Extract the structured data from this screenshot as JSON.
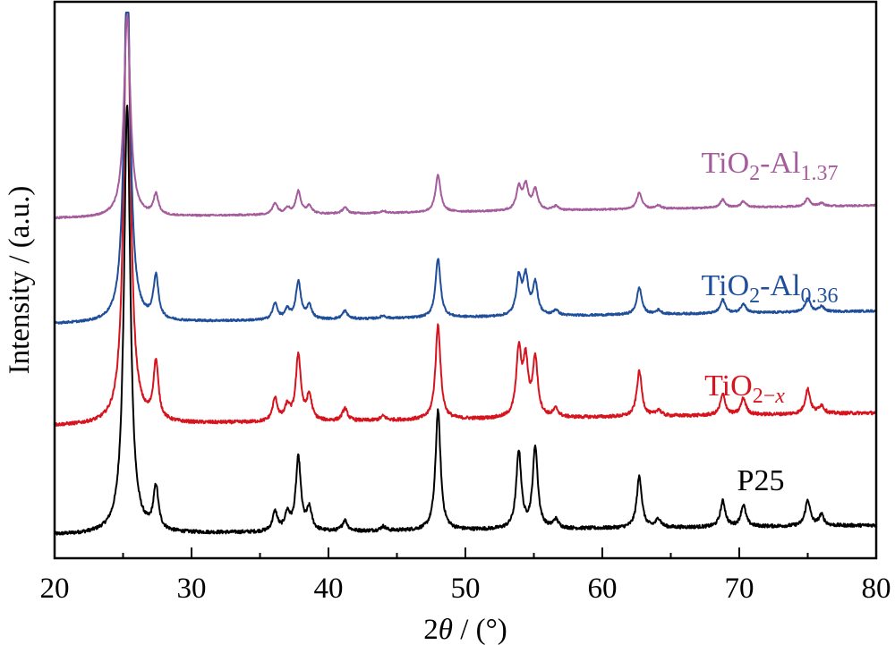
{
  "chart_data": {
    "type": "line",
    "title": "",
    "xlabel": "2θ / (°)",
    "xlabel_parts": {
      "prefix": "2",
      "symbol": "θ",
      "suffix": " / (°)"
    },
    "ylabel": "Intensity / (a.u.)",
    "xlim": [
      20,
      80
    ],
    "x_ticks": [
      20,
      30,
      40,
      50,
      60,
      70,
      80
    ],
    "x_minor_ticks": [
      25,
      35,
      45,
      55,
      65,
      75
    ],
    "y_ticks_shown": false,
    "grid": false,
    "legend": "inline labels at right above each trace",
    "series": [
      {
        "name": "P25",
        "label_parts": {
          "base": "P25",
          "sub1": "",
          "mid": "",
          "sub2": ""
        },
        "color": "#000000",
        "offset": 0,
        "baseline_slope": -0.3,
        "peaks": [
          {
            "x": 25.3,
            "h": 100
          },
          {
            "x": 27.4,
            "h": 10
          },
          {
            "x": 36.1,
            "h": 4.5
          },
          {
            "x": 37.0,
            "h": 4.0
          },
          {
            "x": 37.8,
            "h": 17
          },
          {
            "x": 38.6,
            "h": 5
          },
          {
            "x": 41.2,
            "h": 2.5
          },
          {
            "x": 44.0,
            "h": 1
          },
          {
            "x": 48.0,
            "h": 28
          },
          {
            "x": 53.9,
            "h": 18
          },
          {
            "x": 55.1,
            "h": 19
          },
          {
            "x": 56.6,
            "h": 2
          },
          {
            "x": 62.7,
            "h": 12
          },
          {
            "x": 64.1,
            "h": 2
          },
          {
            "x": 68.8,
            "h": 6
          },
          {
            "x": 70.3,
            "h": 5
          },
          {
            "x": 75.0,
            "h": 6
          },
          {
            "x": 76.0,
            "h": 2.5
          }
        ]
      },
      {
        "name": "TiO2-x",
        "label_parts": {
          "base": "TiO",
          "sub1": "2−x",
          "mid": "",
          "sub2": ""
        },
        "color": "#d7141e",
        "offset": 1,
        "baseline_slope": -0.4,
        "peaks": [
          {
            "x": 25.3,
            "h": 112
          },
          {
            "x": 27.4,
            "h": 14
          },
          {
            "x": 36.1,
            "h": 5.5
          },
          {
            "x": 37.0,
            "h": 3.5
          },
          {
            "x": 37.8,
            "h": 16
          },
          {
            "x": 38.6,
            "h": 6
          },
          {
            "x": 41.2,
            "h": 3
          },
          {
            "x": 44.0,
            "h": 1
          },
          {
            "x": 48.0,
            "h": 23
          },
          {
            "x": 53.9,
            "h": 16
          },
          {
            "x": 54.4,
            "h": 13
          },
          {
            "x": 55.1,
            "h": 14
          },
          {
            "x": 56.6,
            "h": 2
          },
          {
            "x": 62.7,
            "h": 11
          },
          {
            "x": 64.1,
            "h": 1.5
          },
          {
            "x": 68.8,
            "h": 5
          },
          {
            "x": 70.3,
            "h": 4
          },
          {
            "x": 75.0,
            "h": 6
          },
          {
            "x": 76.0,
            "h": 2
          }
        ]
      },
      {
        "name": "TiO2-Al0.36",
        "label_parts": {
          "base": "TiO",
          "sub1": "2",
          "mid": "-Al",
          "sub2": "0.36"
        },
        "color": "#1f4e9a",
        "offset": 2,
        "baseline_slope": -0.4,
        "peaks": [
          {
            "x": 25.3,
            "h": 130
          },
          {
            "x": 27.4,
            "h": 16
          },
          {
            "x": 36.1,
            "h": 6
          },
          {
            "x": 37.0,
            "h": 3.5
          },
          {
            "x": 37.8,
            "h": 14
          },
          {
            "x": 38.6,
            "h": 5
          },
          {
            "x": 41.2,
            "h": 3
          },
          {
            "x": 44.0,
            "h": 1
          },
          {
            "x": 48.0,
            "h": 22
          },
          {
            "x": 53.9,
            "h": 14
          },
          {
            "x": 54.4,
            "h": 14
          },
          {
            "x": 55.1,
            "h": 12
          },
          {
            "x": 56.6,
            "h": 2
          },
          {
            "x": 62.7,
            "h": 10
          },
          {
            "x": 64.1,
            "h": 1.5
          },
          {
            "x": 68.8,
            "h": 5
          },
          {
            "x": 70.3,
            "h": 3.5
          },
          {
            "x": 75.0,
            "h": 5
          },
          {
            "x": 76.0,
            "h": 2
          }
        ]
      },
      {
        "name": "TiO2-Al1.37",
        "label_parts": {
          "base": "TiO",
          "sub1": "2",
          "mid": "-Al",
          "sub2": "1.37"
        },
        "color": "#a55c9c",
        "offset": 3,
        "baseline_slope": -0.4,
        "peaks": [
          {
            "x": 25.3,
            "h": 98
          },
          {
            "x": 27.4,
            "h": 10
          },
          {
            "x": 36.1,
            "h": 5.5
          },
          {
            "x": 37.0,
            "h": 3
          },
          {
            "x": 37.8,
            "h": 11
          },
          {
            "x": 38.6,
            "h": 4
          },
          {
            "x": 41.2,
            "h": 3
          },
          {
            "x": 44.0,
            "h": 1
          },
          {
            "x": 48.0,
            "h": 18
          },
          {
            "x": 53.9,
            "h": 11
          },
          {
            "x": 54.4,
            "h": 12
          },
          {
            "x": 55.1,
            "h": 10
          },
          {
            "x": 56.6,
            "h": 2
          },
          {
            "x": 62.7,
            "h": 8
          },
          {
            "x": 64.1,
            "h": 1.5
          },
          {
            "x": 68.8,
            "h": 4
          },
          {
            "x": 70.3,
            "h": 3
          },
          {
            "x": 75.0,
            "h": 4
          },
          {
            "x": 76.0,
            "h": 1.5
          }
        ]
      }
    ]
  }
}
